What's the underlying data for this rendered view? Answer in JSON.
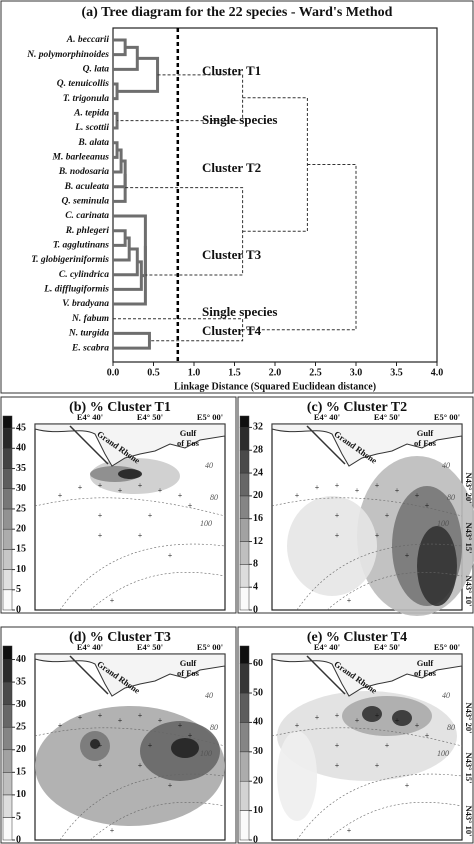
{
  "chart_data": [
    {
      "type": "dendrogram",
      "title": "(a) Tree diagram for the 22 species - Ward's Method",
      "x_label": "Linkage Distance (Squared Euclidean distance)",
      "leaves": [
        "A. beccarii",
        "N. polymorphinoides",
        "Q. lata",
        "Q. tenuicollis",
        "T. trigonula",
        "A. tepida",
        "L. scottii",
        "B. alata",
        "M. barleeanus",
        "B. nodosaria",
        "B. aculeata",
        "Q. seminula",
        "C. carinata",
        "R. phlegeri",
        "T. agglutinans",
        "T. globigeriniformis",
        "C. cylindrica",
        "L. difflugiformis",
        "V. bradyana",
        "N. fabum",
        "N. turgida",
        "E. scabra"
      ],
      "links": [
        {
          "children": [
            0,
            1
          ],
          "height": 0.15
        },
        {
          "children": [
            22,
            2
          ],
          "height": 0.3
        },
        {
          "children": [
            3,
            4
          ],
          "height": 0.05
        },
        {
          "children": [
            23,
            24
          ],
          "height": 0.55
        },
        {
          "children": [
            5,
            6
          ],
          "height": 0.05
        },
        {
          "children": [
            25,
            26
          ],
          "height": 1.6
        },
        {
          "children": [
            7,
            8
          ],
          "height": 0.05
        },
        {
          "children": [
            28,
            9
          ],
          "height": 0.1
        },
        {
          "children": [
            29,
            10
          ],
          "height": 0.15
        },
        {
          "children": [
            30,
            11
          ],
          "height": 0.15
        },
        {
          "children": [
            13,
            14
          ],
          "height": 0.15
        },
        {
          "children": [
            32,
            15
          ],
          "height": 0.2
        },
        {
          "children": [
            33,
            16
          ],
          "height": 0.3
        },
        {
          "children": [
            34,
            17
          ],
          "height": 0.35
        },
        {
          "children": [
            12,
            35
          ],
          "height": 0.4
        },
        {
          "children": [
            36,
            18
          ],
          "height": 0.4
        },
        {
          "children": [
            31,
            37
          ],
          "height": 1.6
        },
        {
          "children": [
            27,
            38
          ],
          "height": 2.4
        },
        {
          "children": [
            20,
            21
          ],
          "height": 0.45
        },
        {
          "children": [
            19,
            40
          ],
          "height": 1.6
        },
        {
          "children": [
            39,
            41
          ],
          "height": 3.0
        }
      ],
      "cutoff": 0.8,
      "cluster_labels": [
        "Cluster T1",
        "Single species",
        "Cluster T2",
        "Cluster T3",
        "Single species",
        "Cluster T4"
      ],
      "xlim": [
        0,
        4.0
      ],
      "xticks": [
        {
          "value": 0,
          "label": "0.0"
        },
        {
          "value": 0.5,
          "label": "0.5"
        },
        {
          "value": 1,
          "label": "1.0"
        },
        {
          "value": 1.5,
          "label": "1.5"
        },
        {
          "value": 2,
          "label": "2.0"
        },
        {
          "value": 2.5,
          "label": "2.5"
        },
        {
          "value": 3,
          "label": "3.0"
        },
        {
          "value": 3.5,
          "label": "3.5"
        },
        {
          "value": 4,
          "label": "4.0"
        }
      ]
    },
    {
      "type": "contour_map",
      "title": "(b) % Cluster T1",
      "ylim": [
        0,
        48
      ],
      "yticks": [
        0,
        5,
        10,
        15,
        20,
        25,
        30,
        35,
        40,
        45
      ],
      "lon_labels": [
        "E4° 40'",
        "E4° 50'",
        "E5° 00'"
      ],
      "river_label": "Grand Rhone",
      "gulf_label": [
        "Gulf",
        "of Fos"
      ],
      "depth_labels": [
        40,
        80,
        100
      ]
    },
    {
      "type": "contour_map",
      "title": "(c) % Cluster T2",
      "ylim": [
        0,
        34
      ],
      "yticks": [
        0,
        4,
        8,
        12,
        16,
        20,
        24,
        28,
        32
      ],
      "lon_labels": [
        "E4° 40'",
        "E4° 50'",
        "E5° 00'"
      ],
      "lat_labels": [
        "N43° 20'",
        "N43° 15'",
        "N43° 10'"
      ],
      "river_label": "Grand Rhone",
      "gulf_label": [
        "Gulf",
        "of Fos"
      ],
      "depth_labels": [
        40,
        80,
        100
      ]
    },
    {
      "type": "contour_map",
      "title": "(d) % Cluster T3",
      "ylim": [
        0,
        43
      ],
      "yticks": [
        0,
        5,
        10,
        15,
        20,
        25,
        30,
        35,
        40
      ],
      "lon_labels": [
        "E4° 40'",
        "E4° 50'",
        "E5° 00'"
      ],
      "river_label": "Grand Rhone",
      "gulf_label": [
        "Gulf",
        "of Fos"
      ],
      "depth_labels": [
        40,
        80,
        100
      ]
    },
    {
      "type": "contour_map",
      "title": "(e) % Cluster T4",
      "ylim": [
        0,
        66
      ],
      "yticks": [
        0,
        10,
        20,
        30,
        40,
        50,
        60
      ],
      "lon_labels": [
        "E4° 40'",
        "E4° 50'",
        "E5° 00'"
      ],
      "lat_labels": [
        "N43° 20'",
        "N43° 15'",
        "N43° 10'"
      ],
      "river_label": "Grand Rhone",
      "gulf_label": [
        "Gulf",
        "of Fos"
      ],
      "depth_labels": [
        40,
        80,
        100
      ]
    }
  ]
}
